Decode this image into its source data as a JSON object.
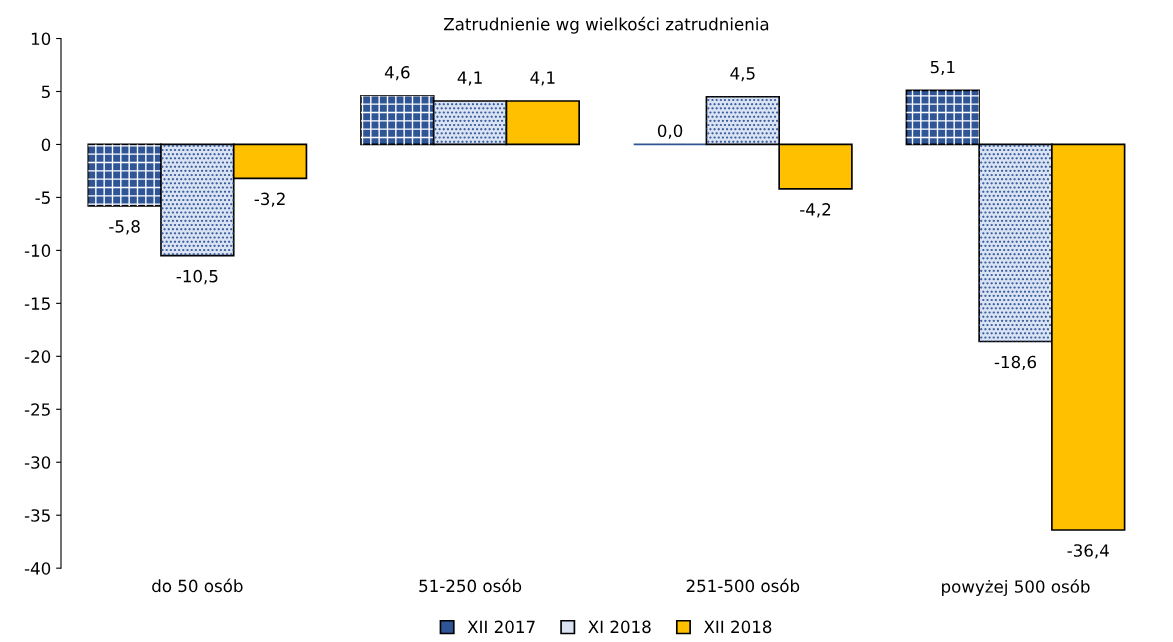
{
  "chart_data": {
    "type": "bar",
    "title": "Zatrudnienie wg wielkości zatrudnienia",
    "categories": [
      "do 50 osób",
      "51-250 osób",
      "251-500 osób",
      "powyżej 500 osób"
    ],
    "series": [
      {
        "name": "XII 2017",
        "color": "#2f5597",
        "values": [
          -5.8,
          4.6,
          0.0,
          5.1
        ],
        "value_labels": [
          "-5,8",
          "4,6",
          "0,0",
          "5,1"
        ]
      },
      {
        "name": "XI 2018",
        "color": "#dae3f3",
        "values": [
          -10.5,
          4.1,
          4.5,
          -18.6
        ],
        "value_labels": [
          "-10,5",
          "4,1",
          "4,5",
          "-18,6"
        ]
      },
      {
        "name": "XII 2018",
        "color": "#ffc000",
        "values": [
          -3.2,
          4.1,
          -4.2,
          -36.4
        ],
        "value_labels": [
          "-3,2",
          "4,1",
          "-4,2",
          "-36,4"
        ]
      }
    ],
    "ylim": [
      -40,
      10
    ],
    "yticks": [
      -40,
      -35,
      -30,
      -25,
      -20,
      -15,
      -10,
      -5,
      0,
      5,
      10
    ],
    "grid": false,
    "legend": "bottom"
  }
}
